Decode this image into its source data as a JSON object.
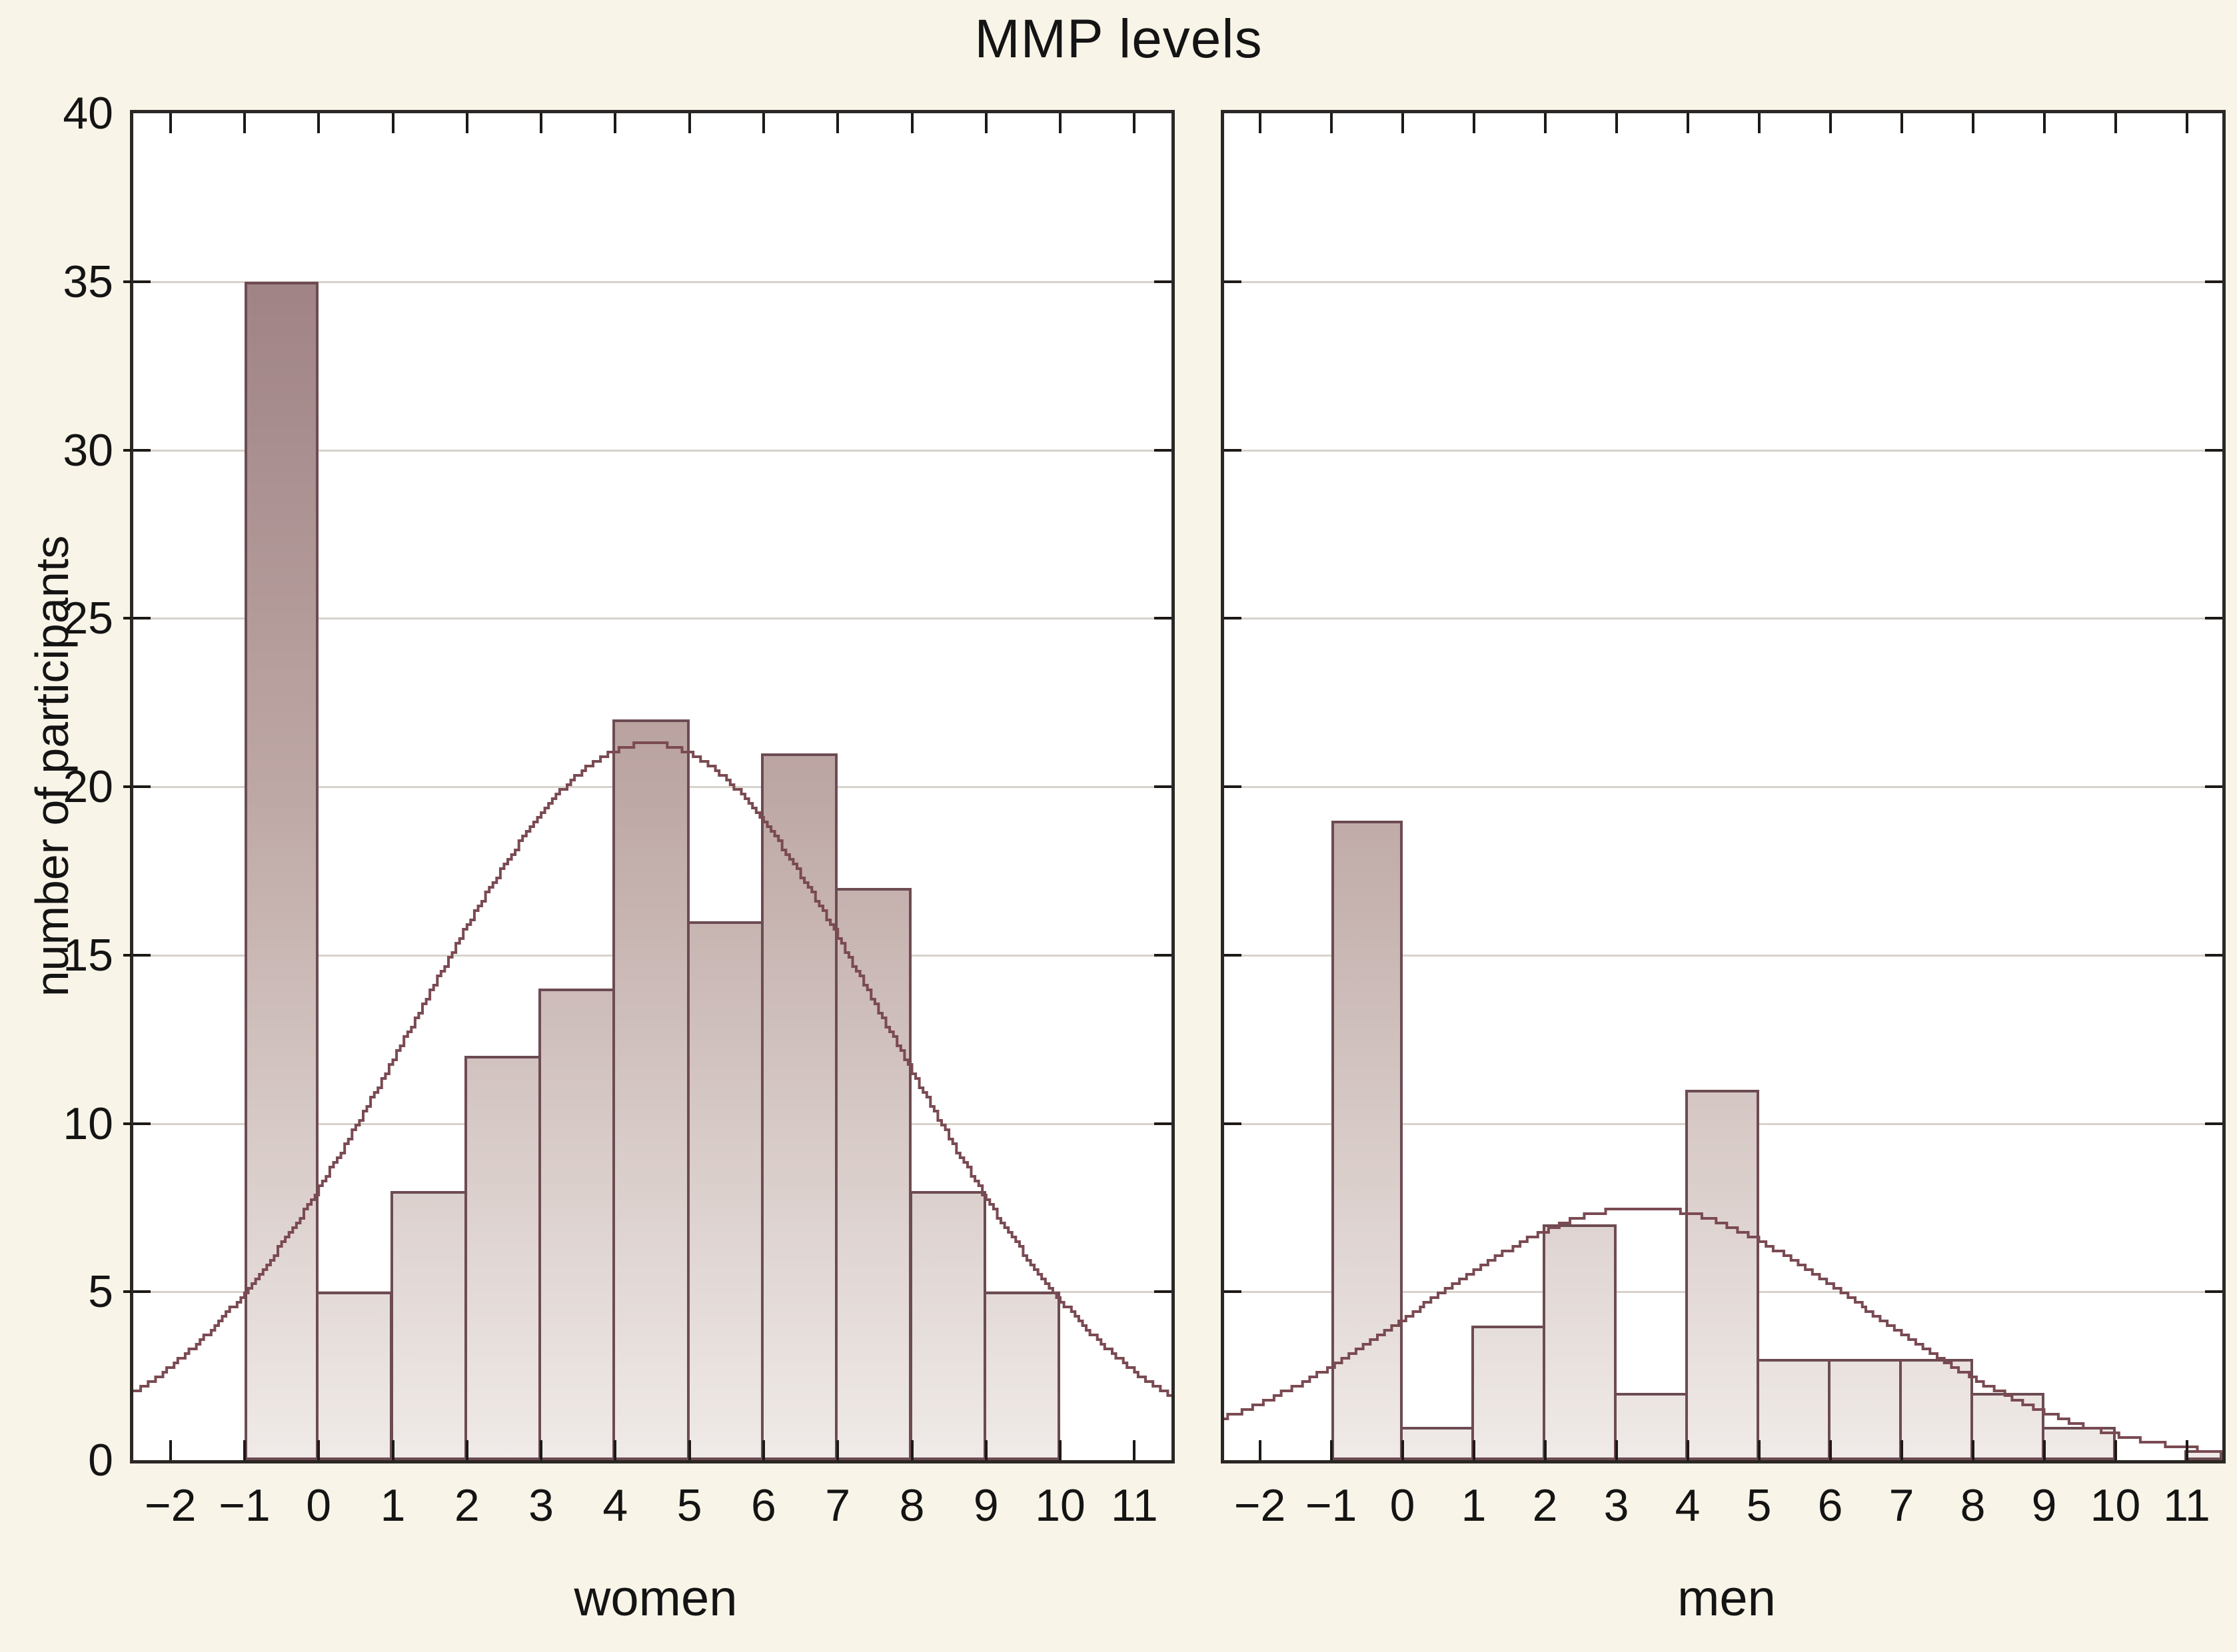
{
  "chart_data": {
    "type": "bar",
    "subtype": "histogram-with-normal-curve",
    "title": "MMP levels",
    "ylabel": "number of participants",
    "xlabel": "",
    "ylim": [
      0,
      40
    ],
    "xlim": [
      -2.5,
      11.5
    ],
    "grid": "horizontal",
    "legend_position": "none",
    "y_ticks": [
      "0",
      "5",
      "10",
      "15",
      "20",
      "25",
      "30",
      "35",
      "40"
    ],
    "y_tick_values": [
      0,
      5,
      10,
      15,
      20,
      25,
      30,
      35,
      40
    ],
    "grid_values": [
      5,
      10,
      15,
      20,
      25,
      30,
      35
    ],
    "x_ticks": [
      "−2",
      "−1",
      "0",
      "1",
      "2",
      "3",
      "4",
      "5",
      "6",
      "7",
      "8",
      "9",
      "10",
      "11"
    ],
    "x_tick_values": [
      -2,
      -1,
      0,
      1,
      2,
      3,
      4,
      5,
      6,
      7,
      8,
      9,
      10,
      11
    ],
    "panels": [
      {
        "label": "women",
        "bin_start": -1,
        "bin_width": 1,
        "bin_edges": [
          -1,
          0,
          1,
          2,
          3,
          4,
          5,
          6,
          7,
          8,
          9,
          10
        ],
        "values": [
          35,
          5,
          8,
          12,
          14,
          22,
          16,
          21,
          17,
          8,
          5
        ],
        "normal_curve": {
          "amplitude": 21.3,
          "mean": 4.45,
          "sd": 3.2
        }
      },
      {
        "label": "men",
        "bin_start": -1,
        "bin_width": 1,
        "bin_edges": [
          -1,
          0,
          1,
          2,
          3,
          4,
          5,
          6,
          7,
          8,
          9,
          10,
          11
        ],
        "values": [
          19,
          1,
          4,
          7,
          2,
          11,
          3,
          3,
          3,
          2,
          1,
          0
        ],
        "edge_bar": {
          "from": 11,
          "to": 11.5,
          "value": 0.3
        },
        "normal_curve": {
          "amplitude": 7.5,
          "mean": 3.35,
          "sd": 3.1
        }
      }
    ],
    "colors": {
      "page_background": "#f8f4e7",
      "plot_background": "#ffffff",
      "bar_gradient_top": "#96777b",
      "bar_gradient_mid": "#bda7a4",
      "bar_gradient_bottom": "#f0ebe8",
      "bar_outline": "#6d4b52",
      "curve": "#7a4a52",
      "gridline": "#d7d3cb",
      "frame": "#2b2724",
      "text": "#141414"
    }
  }
}
